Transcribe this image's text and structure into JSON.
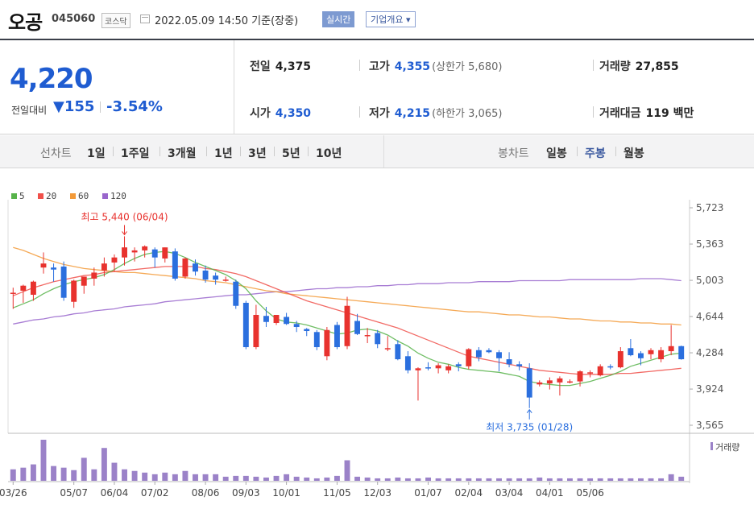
{
  "header": {
    "name": "오공",
    "code": "045060",
    "market": "코스닥",
    "datetime": "2022.05.09 14:50 기준(장중)",
    "realtime_btn": "실시간",
    "corp_btn": "기업개요 ▾"
  },
  "price": {
    "current": "4,220",
    "change_label": "전일대비",
    "change": "▼155",
    "change_pct": "-3.54%"
  },
  "stats": {
    "prev_label": "전일",
    "prev": "4,375",
    "high_label": "고가",
    "high": "4,355",
    "upper_limit": "(상한가 5,680)",
    "volume_label": "거래량",
    "volume": "27,855",
    "open_label": "시가",
    "open": "4,350",
    "low_label": "저가",
    "low": "4,215",
    "lower_limit": "(하한가 3,065)",
    "amount_label": "거래대금",
    "amount": "119 백만"
  },
  "tabs": {
    "line_label": "선차트",
    "line_items": [
      "1일",
      "1주일",
      "3개월",
      "1년",
      "3년",
      "5년",
      "10년"
    ],
    "candle_label": "봉차트",
    "candle_items": [
      "일봉",
      "주봉",
      "월봉"
    ],
    "candle_selected": 1
  },
  "chart_data": {
    "type": "candlestick",
    "period": "weekly",
    "y_ticks": [
      "5,723",
      "5,363",
      "5,003",
      "4,644",
      "4,284",
      "3,924",
      "3,565"
    ],
    "ylim": [
      3565,
      5723
    ],
    "x_labels": [
      "03/26",
      "05/07",
      "06/04",
      "07/02",
      "08/06",
      "09/03",
      "10/01",
      "11/05",
      "12/03",
      "01/07",
      "02/04",
      "03/04",
      "04/01",
      "05/06"
    ],
    "legend": [
      {
        "label": "5",
        "color": "#57b34a"
      },
      {
        "label": "20",
        "color": "#f0504a"
      },
      {
        "label": "60",
        "color": "#f39a38"
      },
      {
        "label": "120",
        "color": "#9966cc"
      }
    ],
    "annotations": {
      "high": "최고 5,440 (06/04)",
      "low": "최저 3,735 (01/28)"
    },
    "volume_label": "거래량",
    "candles": [
      {
        "o": 4880,
        "h": 4930,
        "l": 4720,
        "c": 4880
      },
      {
        "o": 4900,
        "h": 4960,
        "l": 4780,
        "c": 4950
      },
      {
        "o": 4860,
        "h": 5000,
        "l": 4800,
        "c": 4990
      },
      {
        "o": 5130,
        "h": 5280,
        "l": 5070,
        "c": 5170
      },
      {
        "o": 5130,
        "h": 5170,
        "l": 4990,
        "c": 5110
      },
      {
        "o": 5140,
        "h": 5190,
        "l": 4800,
        "c": 4830
      },
      {
        "o": 4790,
        "h": 5010,
        "l": 4730,
        "c": 5000
      },
      {
        "o": 4950,
        "h": 5040,
        "l": 4870,
        "c": 5040
      },
      {
        "o": 5020,
        "h": 5130,
        "l": 4950,
        "c": 5080
      },
      {
        "o": 5100,
        "h": 5230,
        "l": 5040,
        "c": 5170
      },
      {
        "o": 5180,
        "h": 5260,
        "l": 5090,
        "c": 5230
      },
      {
        "o": 5230,
        "h": 5440,
        "l": 5150,
        "c": 5330
      },
      {
        "o": 5280,
        "h": 5330,
        "l": 5190,
        "c": 5300
      },
      {
        "o": 5300,
        "h": 5350,
        "l": 5230,
        "c": 5340
      },
      {
        "o": 5310,
        "h": 5330,
        "l": 5130,
        "c": 5230
      },
      {
        "o": 5220,
        "h": 5330,
        "l": 5180,
        "c": 5330
      },
      {
        "o": 5290,
        "h": 5320,
        "l": 5000,
        "c": 5020
      },
      {
        "o": 5040,
        "h": 5230,
        "l": 5020,
        "c": 5220
      },
      {
        "o": 5170,
        "h": 5210,
        "l": 5050,
        "c": 5090
      },
      {
        "o": 5100,
        "h": 5150,
        "l": 4980,
        "c": 5010
      },
      {
        "o": 5050,
        "h": 5080,
        "l": 4960,
        "c": 5010
      },
      {
        "o": 5010,
        "h": 5040,
        "l": 4990,
        "c": 5010
      },
      {
        "o": 4990,
        "h": 5010,
        "l": 4720,
        "c": 4750
      },
      {
        "o": 4780,
        "h": 4800,
        "l": 4320,
        "c": 4340
      },
      {
        "o": 4340,
        "h": 4760,
        "l": 4320,
        "c": 4660
      },
      {
        "o": 4650,
        "h": 4740,
        "l": 4540,
        "c": 4590
      },
      {
        "o": 4580,
        "h": 4660,
        "l": 4560,
        "c": 4660
      },
      {
        "o": 4640,
        "h": 4680,
        "l": 4560,
        "c": 4570
      },
      {
        "o": 4570,
        "h": 4600,
        "l": 4490,
        "c": 4540
      },
      {
        "o": 4520,
        "h": 4530,
        "l": 4450,
        "c": 4500
      },
      {
        "o": 4490,
        "h": 4510,
        "l": 4310,
        "c": 4340
      },
      {
        "o": 4250,
        "h": 4540,
        "l": 4210,
        "c": 4510
      },
      {
        "o": 4560,
        "h": 4590,
        "l": 4320,
        "c": 4340
      },
      {
        "o": 4350,
        "h": 4840,
        "l": 4320,
        "c": 4750
      },
      {
        "o": 4600,
        "h": 4670,
        "l": 4460,
        "c": 4470
      },
      {
        "o": 4450,
        "h": 4530,
        "l": 4380,
        "c": 4460
      },
      {
        "o": 4480,
        "h": 4510,
        "l": 4330,
        "c": 4370
      },
      {
        "o": 4330,
        "h": 4450,
        "l": 4300,
        "c": 4330
      },
      {
        "o": 4370,
        "h": 4410,
        "l": 4210,
        "c": 4220
      },
      {
        "o": 4250,
        "h": 4300,
        "l": 4080,
        "c": 4110
      },
      {
        "o": 4110,
        "h": 4140,
        "l": 3810,
        "c": 4130
      },
      {
        "o": 4140,
        "h": 4190,
        "l": 4110,
        "c": 4130
      },
      {
        "o": 4130,
        "h": 4180,
        "l": 4080,
        "c": 4160
      },
      {
        "o": 4110,
        "h": 4170,
        "l": 4080,
        "c": 4150
      },
      {
        "o": 4170,
        "h": 4190,
        "l": 4100,
        "c": 4150
      },
      {
        "o": 4150,
        "h": 4330,
        "l": 4120,
        "c": 4320
      },
      {
        "o": 4310,
        "h": 4340,
        "l": 4200,
        "c": 4240
      },
      {
        "o": 4310,
        "h": 4330,
        "l": 4280,
        "c": 4290
      },
      {
        "o": 4290,
        "h": 4310,
        "l": 4100,
        "c": 4230
      },
      {
        "o": 4220,
        "h": 4290,
        "l": 4140,
        "c": 4170
      },
      {
        "o": 4170,
        "h": 4200,
        "l": 4110,
        "c": 4150
      },
      {
        "o": 4130,
        "h": 4180,
        "l": 3735,
        "c": 3840
      },
      {
        "o": 3970,
        "h": 4010,
        "l": 3950,
        "c": 3990
      },
      {
        "o": 3980,
        "h": 4040,
        "l": 3920,
        "c": 4010
      },
      {
        "o": 3990,
        "h": 4050,
        "l": 3860,
        "c": 4030
      },
      {
        "o": 4000,
        "h": 4020,
        "l": 3980,
        "c": 4000
      },
      {
        "o": 4000,
        "h": 4110,
        "l": 3950,
        "c": 4100
      },
      {
        "o": 4080,
        "h": 4110,
        "l": 4040,
        "c": 4090
      },
      {
        "o": 4060,
        "h": 4170,
        "l": 4050,
        "c": 4150
      },
      {
        "o": 4150,
        "h": 4170,
        "l": 4120,
        "c": 4140
      },
      {
        "o": 4140,
        "h": 4340,
        "l": 4130,
        "c": 4300
      },
      {
        "o": 4330,
        "h": 4420,
        "l": 4250,
        "c": 4260
      },
      {
        "o": 4280,
        "h": 4300,
        "l": 4160,
        "c": 4230
      },
      {
        "o": 4270,
        "h": 4330,
        "l": 4220,
        "c": 4310
      },
      {
        "o": 4220,
        "h": 4340,
        "l": 4190,
        "c": 4310
      },
      {
        "o": 4300,
        "h": 4560,
        "l": 4260,
        "c": 4350
      },
      {
        "o": 4350,
        "h": 4355,
        "l": 4215,
        "c": 4220
      }
    ],
    "volume": [
      14,
      16,
      20,
      50,
      18,
      16,
      13,
      28,
      14,
      40,
      22,
      14,
      12,
      10,
      8,
      10,
      8,
      12,
      8,
      8,
      8,
      5,
      6,
      6,
      5,
      4,
      6,
      8,
      5,
      4,
      3,
      4,
      6,
      25,
      5,
      4,
      3,
      3,
      4,
      3,
      3,
      4,
      3,
      3,
      3,
      3,
      3,
      3,
      3,
      3,
      3,
      3,
      4,
      3,
      3,
      3,
      3,
      3,
      3,
      3,
      3,
      3,
      3,
      3,
      3,
      8,
      5
    ],
    "ma5": [
      4730,
      4770,
      4810,
      4870,
      4920,
      4960,
      4990,
      5010,
      5030,
      5060,
      5110,
      5170,
      5220,
      5260,
      5280,
      5290,
      5270,
      5230,
      5180,
      5140,
      5100,
      5060,
      5000,
      4920,
      4800,
      4700,
      4620,
      4590,
      4580,
      4560,
      4530,
      4500,
      4470,
      4480,
      4510,
      4520,
      4500,
      4460,
      4400,
      4350,
      4280,
      4230,
      4190,
      4170,
      4140,
      4120,
      4110,
      4100,
      4090,
      4070,
      4050,
      4000,
      3980,
      3970,
      3960,
      3960,
      3980,
      4000,
      4030,
      4060,
      4100,
      4150,
      4180,
      4210,
      4240,
      4270,
      4280
    ],
    "ma20": [
      4850,
      4890,
      4930,
      4960,
      4990,
      5010,
      5030,
      5050,
      5060,
      5080,
      5090,
      5100,
      5110,
      5120,
      5130,
      5140,
      5140,
      5140,
      5140,
      5120,
      5110,
      5090,
      5070,
      5040,
      5000,
      4960,
      4920,
      4880,
      4840,
      4800,
      4770,
      4740,
      4710,
      4680,
      4650,
      4620,
      4590,
      4560,
      4530,
      4490,
      4450,
      4410,
      4370,
      4330,
      4290,
      4250,
      4230,
      4210,
      4190,
      4170,
      4150,
      4130,
      4110,
      4100,
      4090,
      4080,
      4070,
      4070,
      4070,
      4070,
      4080,
      4080,
      4090,
      4100,
      4110,
      4120,
      4130
    ],
    "ma60": [
      5330,
      5300,
      5260,
      5220,
      5190,
      5160,
      5140,
      5120,
      5110,
      5100,
      5090,
      5080,
      5080,
      5070,
      5060,
      5050,
      5040,
      5030,
      5020,
      5000,
      4990,
      4980,
      4960,
      4940,
      4920,
      4900,
      4890,
      4870,
      4860,
      4850,
      4840,
      4830,
      4820,
      4810,
      4800,
      4790,
      4780,
      4770,
      4760,
      4750,
      4740,
      4730,
      4720,
      4710,
      4700,
      4690,
      4690,
      4680,
      4670,
      4660,
      4660,
      4650,
      4640,
      4640,
      4630,
      4620,
      4620,
      4610,
      4600,
      4600,
      4590,
      4590,
      4580,
      4580,
      4570,
      4570,
      4560
    ],
    "ma120": [
      4570,
      4590,
      4610,
      4620,
      4640,
      4650,
      4670,
      4680,
      4700,
      4710,
      4720,
      4740,
      4750,
      4760,
      4770,
      4790,
      4800,
      4810,
      4820,
      4830,
      4840,
      4850,
      4860,
      4860,
      4870,
      4880,
      4890,
      4890,
      4900,
      4910,
      4920,
      4920,
      4930,
      4930,
      4940,
      4940,
      4950,
      4950,
      4960,
      4960,
      4970,
      4970,
      4970,
      4980,
      4980,
      4980,
      4990,
      4990,
      4990,
      4990,
      5000,
      5000,
      5000,
      5000,
      5000,
      5010,
      5010,
      5010,
      5010,
      5010,
      5010,
      5010,
      5020,
      5020,
      5020,
      5010,
      5000
    ]
  }
}
